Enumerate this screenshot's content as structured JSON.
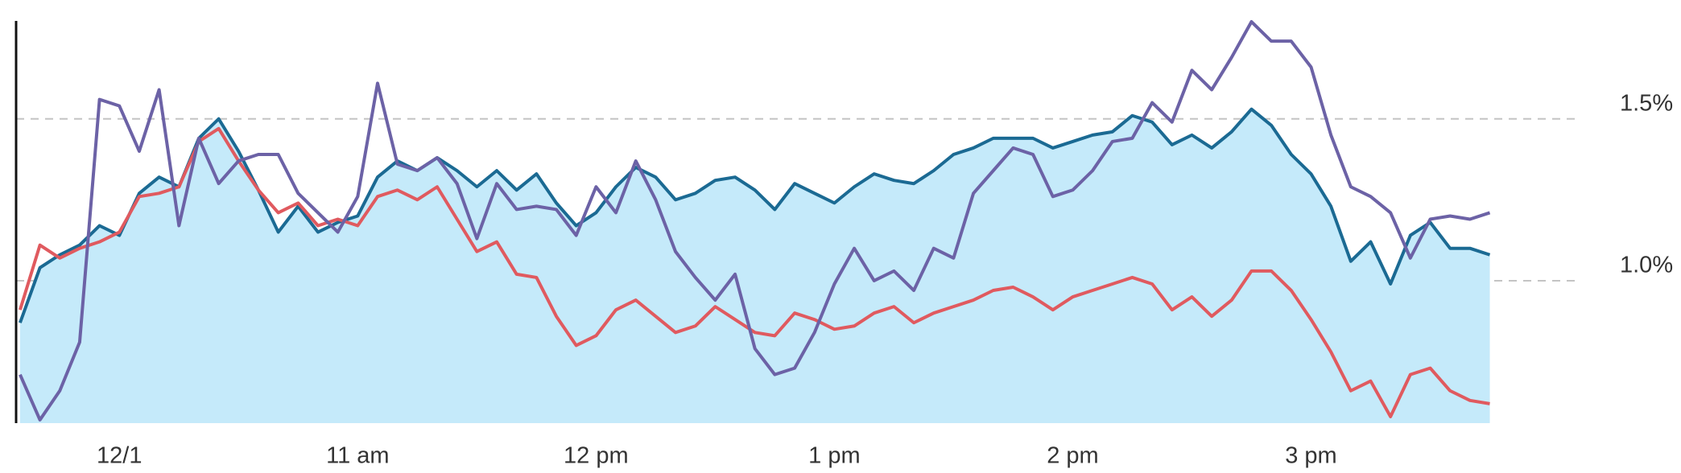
{
  "chart_data": {
    "type": "line",
    "x": [
      575,
      580,
      585,
      590,
      595,
      600,
      605,
      610,
      615,
      620,
      625,
      630,
      635,
      640,
      645,
      650,
      655,
      660,
      665,
      670,
      675,
      680,
      685,
      690,
      695,
      700,
      705,
      710,
      715,
      720,
      725,
      730,
      735,
      740,
      745,
      750,
      755,
      760,
      765,
      770,
      775,
      780,
      785,
      790,
      795,
      800,
      805,
      810,
      815,
      820,
      825,
      830,
      835,
      840,
      845,
      850,
      855,
      860,
      865,
      870,
      875,
      880,
      885,
      890,
      895,
      900,
      905,
      910,
      915,
      920,
      925,
      930,
      935,
      940,
      945
    ],
    "xlim": [
      574,
      968
    ],
    "xticks": [
      {
        "value": 600,
        "label": "12/1"
      },
      {
        "value": 660,
        "label": "11 am"
      },
      {
        "value": 720,
        "label": "12 pm"
      },
      {
        "value": 780,
        "label": "1 pm"
      },
      {
        "value": 840,
        "label": "2 pm"
      },
      {
        "value": 900,
        "label": "3 pm"
      }
    ],
    "ylim": [
      0.56,
      1.81
    ],
    "yticks": [
      {
        "value": 1.0,
        "label": "1.0%"
      },
      {
        "value": 1.5,
        "label": "1.5%"
      }
    ],
    "grid": true,
    "series": [
      {
        "color": "#1b6a93",
        "fill": "#c5eafa",
        "values": [
          0.87,
          1.04,
          1.08,
          1.11,
          1.17,
          1.14,
          1.27,
          1.32,
          1.29,
          1.44,
          1.5,
          1.4,
          1.28,
          1.15,
          1.23,
          1.15,
          1.18,
          1.2,
          1.32,
          1.37,
          1.34,
          1.38,
          1.34,
          1.29,
          1.34,
          1.28,
          1.33,
          1.24,
          1.17,
          1.21,
          1.29,
          1.35,
          1.32,
          1.25,
          1.27,
          1.31,
          1.32,
          1.28,
          1.22,
          1.3,
          1.27,
          1.24,
          1.29,
          1.33,
          1.31,
          1.3,
          1.34,
          1.39,
          1.41,
          1.44,
          1.44,
          1.44,
          1.41,
          1.43,
          1.45,
          1.46,
          1.51,
          1.49,
          1.42,
          1.45,
          1.41,
          1.46,
          1.53,
          1.48,
          1.39,
          1.33,
          1.23,
          1.06,
          1.12,
          0.99,
          1.14,
          1.18,
          1.1,
          1.1,
          1.08
        ]
      },
      {
        "color": "#e05a5f",
        "values": [
          0.91,
          1.11,
          1.07,
          1.1,
          1.12,
          1.15,
          1.26,
          1.27,
          1.29,
          1.43,
          1.47,
          1.37,
          1.28,
          1.21,
          1.24,
          1.17,
          1.19,
          1.17,
          1.26,
          1.28,
          1.25,
          1.29,
          1.19,
          1.09,
          1.12,
          1.02,
          1.01,
          0.89,
          0.8,
          0.83,
          0.91,
          0.94,
          0.89,
          0.84,
          0.86,
          0.92,
          0.88,
          0.84,
          0.83,
          0.9,
          0.88,
          0.85,
          0.86,
          0.9,
          0.92,
          0.87,
          0.9,
          0.92,
          0.94,
          0.97,
          0.98,
          0.95,
          0.91,
          0.95,
          0.97,
          0.99,
          1.01,
          0.99,
          0.91,
          0.95,
          0.89,
          0.94,
          1.03,
          1.03,
          0.97,
          0.88,
          0.78,
          0.66,
          0.69,
          0.58,
          0.71,
          0.73,
          0.66,
          0.63,
          0.62
        ]
      },
      {
        "color": "#6c62a6",
        "values": [
          0.71,
          0.57,
          0.66,
          0.81,
          1.56,
          1.54,
          1.4,
          1.59,
          1.17,
          1.44,
          1.3,
          1.37,
          1.39,
          1.39,
          1.27,
          1.21,
          1.15,
          1.26,
          1.61,
          1.36,
          1.34,
          1.38,
          1.3,
          1.13,
          1.3,
          1.22,
          1.23,
          1.22,
          1.14,
          1.29,
          1.21,
          1.37,
          1.25,
          1.09,
          1.01,
          0.94,
          1.02,
          0.79,
          0.71,
          0.73,
          0.84,
          0.99,
          1.1,
          1.0,
          1.03,
          0.97,
          1.1,
          1.07,
          1.27,
          1.34,
          1.41,
          1.39,
          1.26,
          1.28,
          1.34,
          1.43,
          1.44,
          1.55,
          1.49,
          1.65,
          1.59,
          1.69,
          1.8,
          1.74,
          1.74,
          1.66,
          1.45,
          1.29,
          1.26,
          1.21,
          1.07,
          1.19,
          1.2,
          1.19,
          1.21
        ]
      }
    ]
  }
}
